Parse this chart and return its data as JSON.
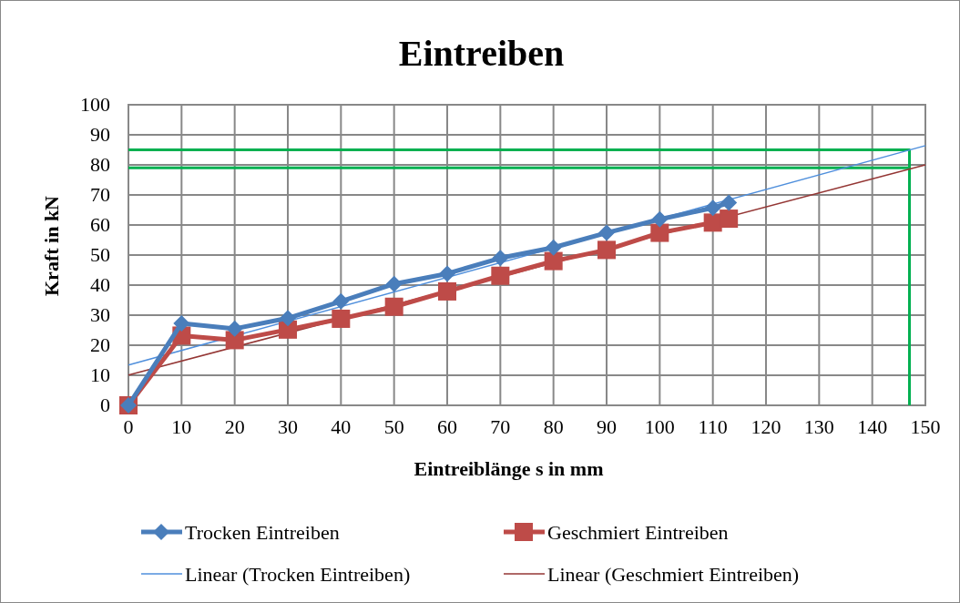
{
  "chart_data": {
    "type": "line",
    "title": "Eintreiben",
    "xlabel": "Eintreiblänge s in mm",
    "ylabel": "Kraft in kN",
    "xlim": [
      0,
      150
    ],
    "xticks": [
      0,
      10,
      20,
      30,
      40,
      50,
      60,
      70,
      80,
      90,
      100,
      110,
      120,
      130,
      140,
      150
    ],
    "ylim": [
      0,
      100
    ],
    "yticks": [
      0,
      10,
      20,
      30,
      40,
      50,
      60,
      70,
      80,
      90,
      100
    ],
    "grid": true,
    "legend": "bottom",
    "series": [
      {
        "name": "Trocken Eintreiben",
        "color": "#4a7ebb",
        "marker": "diamond",
        "x": [
          0,
          10,
          20,
          30,
          40,
          50,
          60,
          70,
          80,
          90,
          100,
          110,
          113
        ],
        "values": [
          0,
          27.3,
          25.5,
          29,
          34.6,
          40.4,
          43.8,
          49,
          52.5,
          57.4,
          61.9,
          65.7,
          67.4
        ]
      },
      {
        "name": "Geschmiert Eintreiben",
        "color": "#be4b48",
        "marker": "square",
        "x": [
          0,
          10,
          20,
          30,
          40,
          50,
          60,
          70,
          80,
          90,
          100,
          110,
          113
        ],
        "values": [
          0,
          23.2,
          21.7,
          25.2,
          28.8,
          32.8,
          37.9,
          43.1,
          48,
          51.7,
          57.4,
          60.8,
          62.1
        ]
      },
      {
        "name": "Linear (Trocken Eintreiben)",
        "color": "#4f8fdc",
        "marker": "none",
        "x": [
          0,
          150
        ],
        "values": [
          13.4,
          86.4
        ]
      },
      {
        "name": "Linear (Geschmiert Eintreiben)",
        "color": "#943634",
        "marker": "none",
        "x": [
          0,
          150
        ],
        "values": [
          10.1,
          80
        ]
      },
      {
        "color": "#00b050",
        "marker": "none",
        "x": [
          0,
          147,
          147
        ],
        "values": [
          85,
          85,
          0
        ]
      },
      {
        "color": "#00b050",
        "marker": "none",
        "x": [
          0,
          147
        ],
        "values": [
          79,
          79
        ]
      }
    ]
  }
}
